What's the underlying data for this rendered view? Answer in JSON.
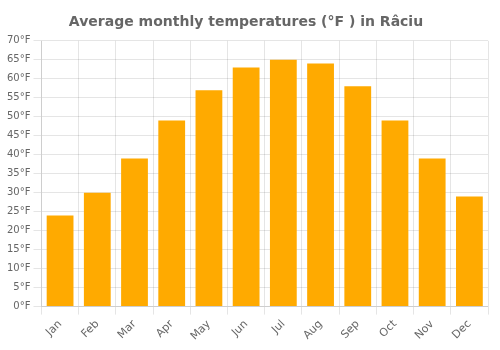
{
  "chart_data": {
    "type": "bar",
    "title": "Average monthly temperatures (°F ) in Râciu",
    "categories": [
      "Jan",
      "Feb",
      "Mar",
      "Apr",
      "May",
      "Jun",
      "Jul",
      "Aug",
      "Sep",
      "Oct",
      "Nov",
      "Dec"
    ],
    "values": [
      24,
      30,
      39,
      49,
      57,
      63,
      65,
      64,
      58,
      49,
      39,
      29
    ],
    "color": "#FFAA00",
    "ylim": [
      0,
      70
    ],
    "yticks": [
      {
        "value": 0,
        "label": "0°F"
      },
      {
        "value": 5,
        "label": "5°F"
      },
      {
        "value": 10,
        "label": "10°F"
      },
      {
        "value": 15,
        "label": "15°F"
      },
      {
        "value": 20,
        "label": "20°F"
      },
      {
        "value": 25,
        "label": "25°F"
      },
      {
        "value": 30,
        "label": "30°F"
      },
      {
        "value": 35,
        "label": "35°F"
      },
      {
        "value": 40,
        "label": "40°F"
      },
      {
        "value": 45,
        "label": "45°F"
      },
      {
        "value": 50,
        "label": "50°F"
      },
      {
        "value": 55,
        "label": "55°F"
      },
      {
        "value": 60,
        "label": "60°F"
      },
      {
        "value": 65,
        "label": "65°F"
      },
      {
        "value": 70,
        "label": "70°F"
      }
    ],
    "grid": true
  }
}
